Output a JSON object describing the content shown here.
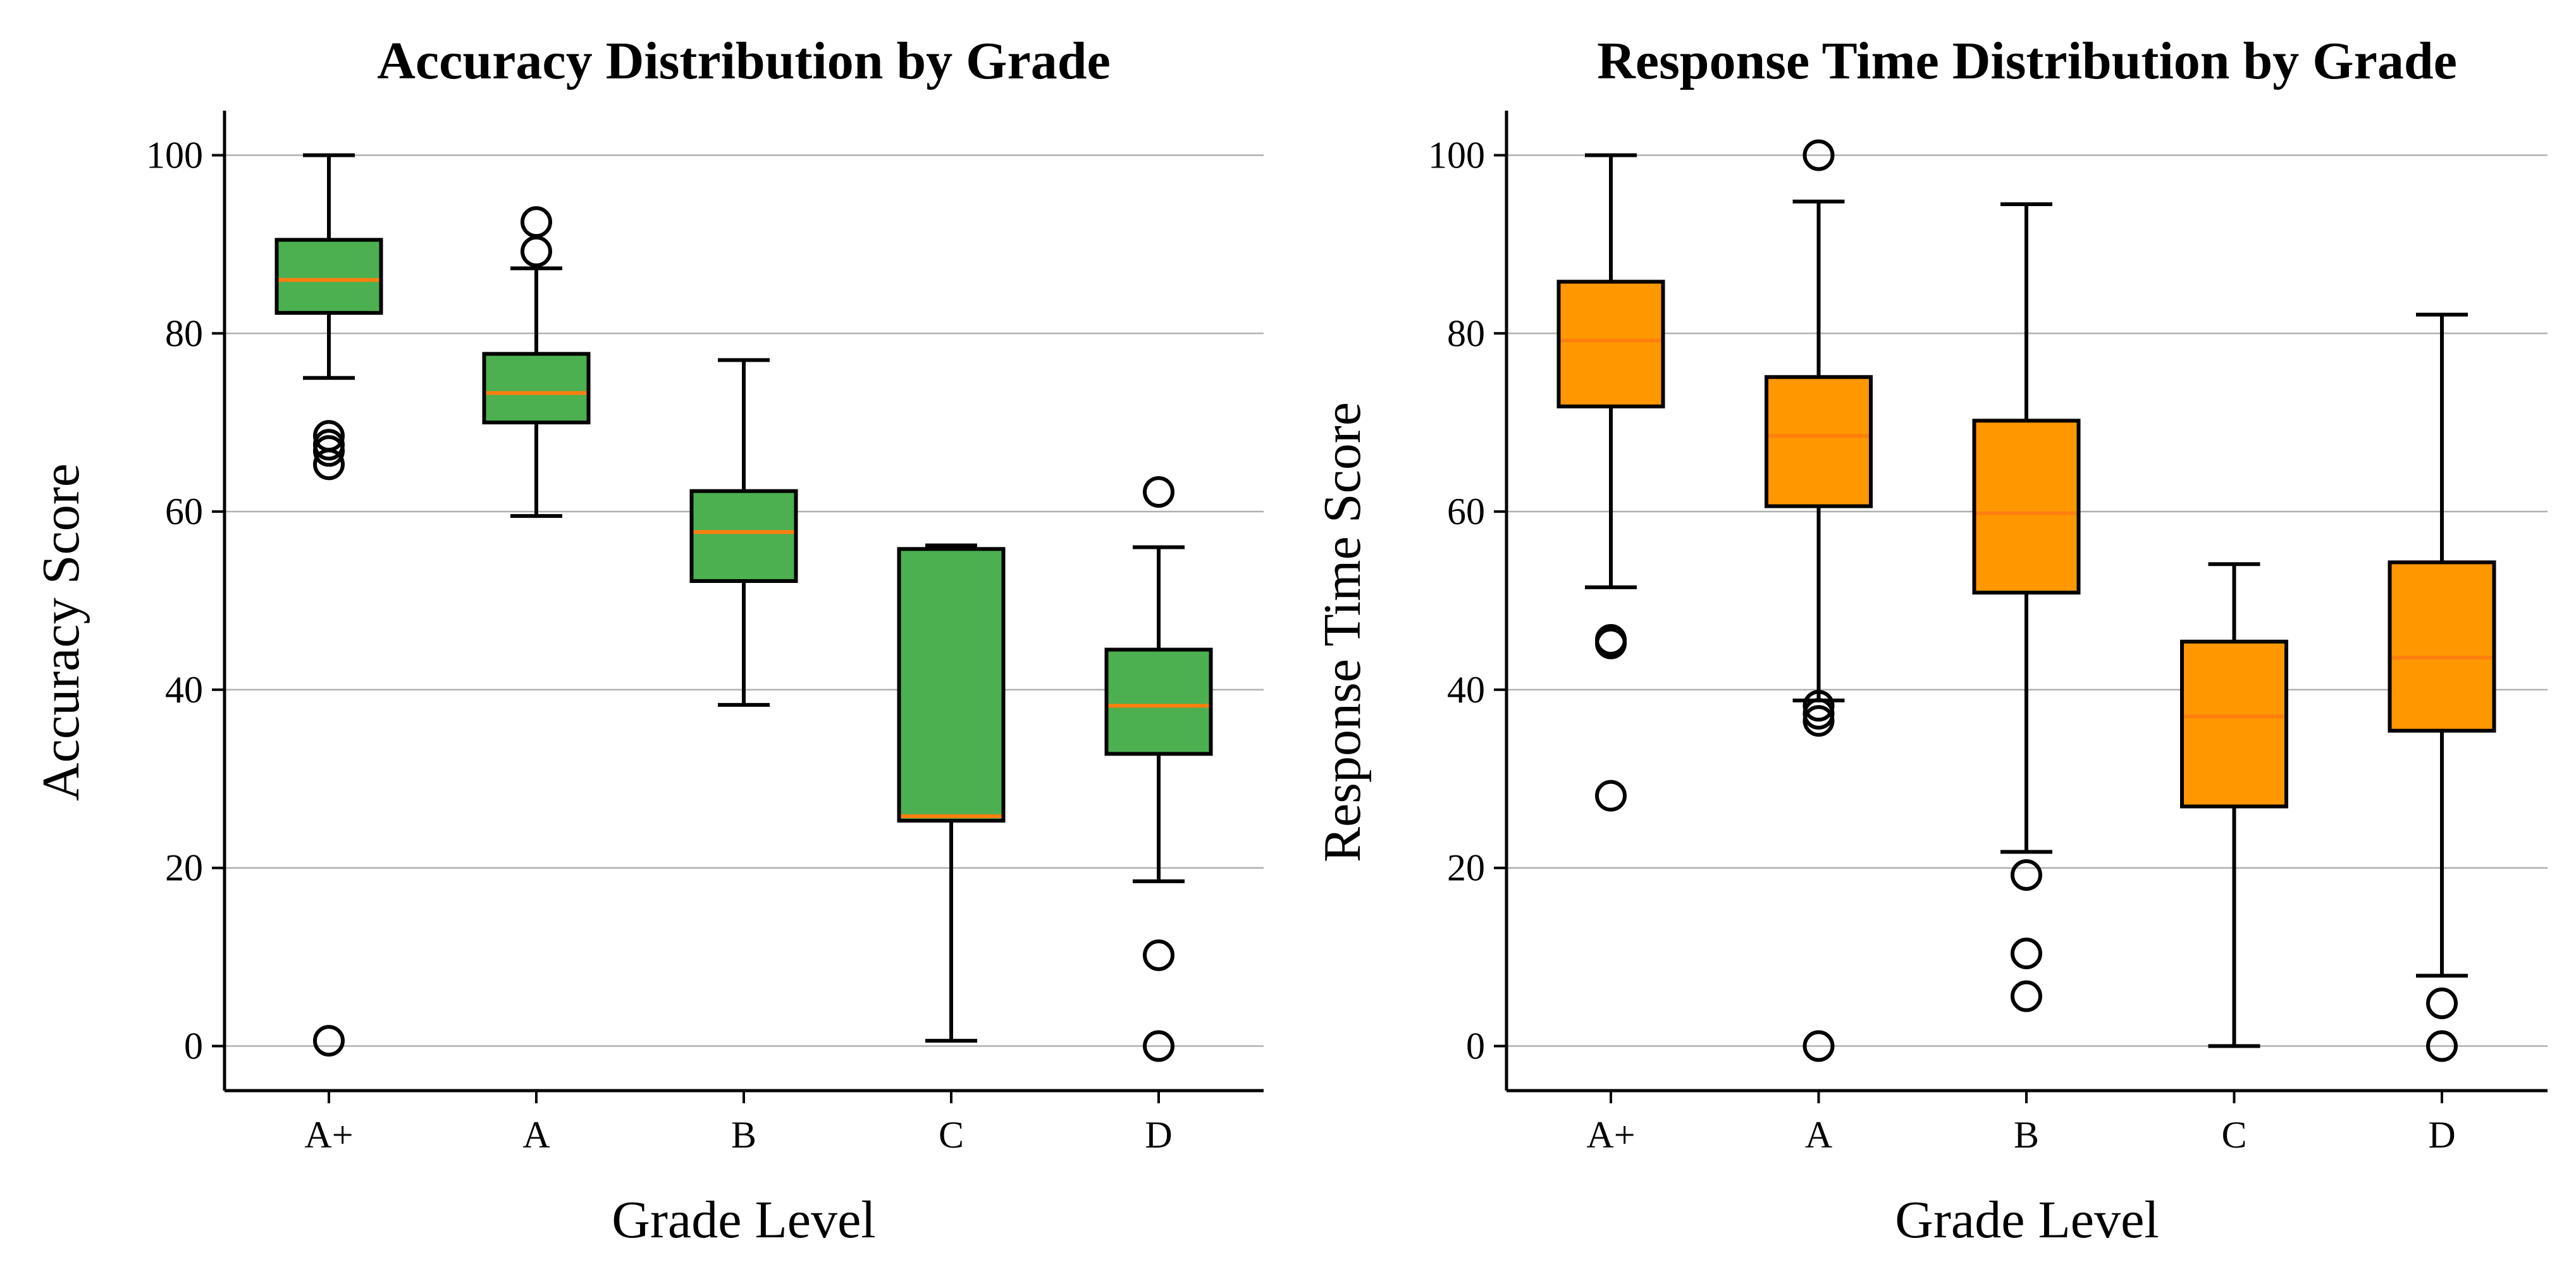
{
  "figure": {
    "box_fill_colors": [
      "#4caf50",
      "#ff9800"
    ],
    "median_color": "#ff7f0e",
    "grid": true
  },
  "chart_data": [
    {
      "type": "boxplot",
      "title": "Accuracy Distribution by Grade",
      "xlabel": "Grade Level",
      "ylabel": "Accuracy Score",
      "ylim": [
        -5,
        105
      ],
      "yticks": [
        0,
        20,
        40,
        60,
        80,
        100
      ],
      "grid": "y",
      "box_color": "#4caf50",
      "categories": [
        "A+",
        "A",
        "B",
        "C",
        "D"
      ],
      "boxes": [
        {
          "label": "A+",
          "whisker_low": 75,
          "q1": 82.3,
          "median": 86,
          "q3": 90.5,
          "whisker_high": 100,
          "outliers": [
            68.5,
            67.5,
            66.8,
            65.3,
            0.6
          ]
        },
        {
          "label": "A",
          "whisker_low": 59.5,
          "q1": 70,
          "median": 73.3,
          "q3": 77.7,
          "whisker_high": 87.3,
          "outliers": [
            92.5,
            89.2
          ]
        },
        {
          "label": "B",
          "whisker_low": 38.3,
          "q1": 52.2,
          "median": 57.7,
          "q3": 62.3,
          "whisker_high": 77,
          "outliers": []
        },
        {
          "label": "C",
          "whisker_low": 0.6,
          "q1": 25.3,
          "median": 25.8,
          "q3": 55.8,
          "whisker_high": 56.2,
          "outliers": []
        },
        {
          "label": "D",
          "whisker_low": 18.5,
          "q1": 32.8,
          "median": 38.2,
          "q3": 44.5,
          "whisker_high": 56,
          "outliers": [
            62.2,
            10.2,
            0
          ]
        }
      ]
    },
    {
      "type": "boxplot",
      "title": "Response Time Distribution by Grade",
      "xlabel": "Grade Level",
      "ylabel": "Response Time Score",
      "ylim": [
        -5,
        105
      ],
      "yticks": [
        0,
        20,
        40,
        60,
        80,
        100
      ],
      "grid": "y",
      "box_color": "#ff9800",
      "categories": [
        "A+",
        "A",
        "B",
        "C",
        "D"
      ],
      "boxes": [
        {
          "label": "A+",
          "whisker_low": 51.5,
          "q1": 71.8,
          "median": 79.2,
          "q3": 85.8,
          "whisker_high": 100,
          "outliers": [
            45.6,
            45.2,
            28.1
          ]
        },
        {
          "label": "A",
          "whisker_low": 38.8,
          "q1": 60.6,
          "median": 68.5,
          "q3": 75.1,
          "whisker_high": 94.8,
          "outliers": [
            100,
            38.2,
            37.3,
            36.5,
            0
          ]
        },
        {
          "label": "B",
          "whisker_low": 21.8,
          "q1": 50.9,
          "median": 59.8,
          "q3": 70.2,
          "whisker_high": 94.5,
          "outliers": [
            19.2,
            10.4,
            5.6
          ]
        },
        {
          "label": "C",
          "whisker_low": 0,
          "q1": 26.9,
          "median": 37,
          "q3": 45.4,
          "whisker_high": 54.1,
          "outliers": []
        },
        {
          "label": "D",
          "whisker_low": 7.9,
          "q1": 35.4,
          "median": 43.6,
          "q3": 54.3,
          "whisker_high": 82.1,
          "outliers": [
            4.8,
            0
          ]
        }
      ]
    }
  ]
}
